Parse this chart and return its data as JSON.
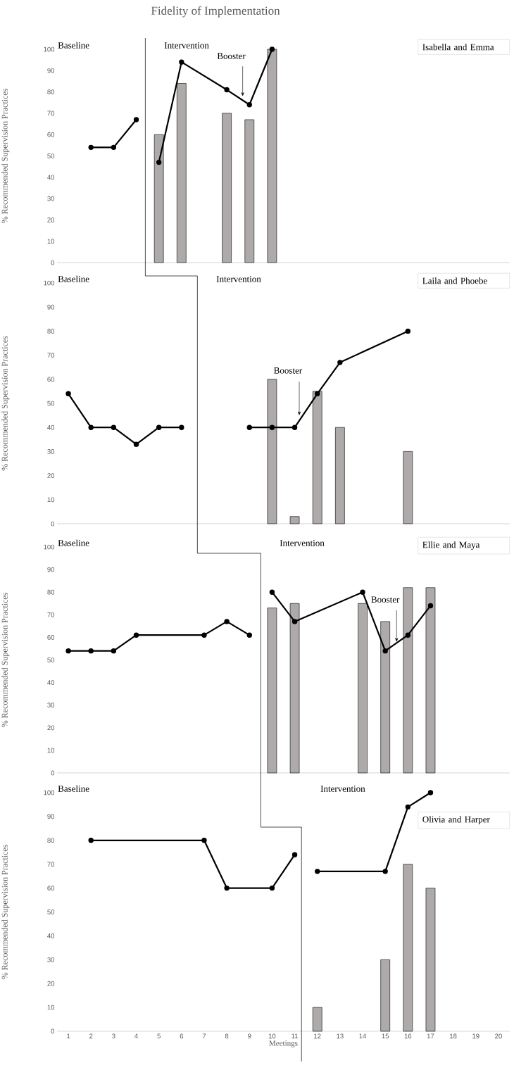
{
  "chart_data": [
    {
      "type": "line",
      "title": "Fidelity of Implementation",
      "subtitle": "Isabella and Emma",
      "ylabel": "% Recommended Supervision Practices",
      "xlim": [
        0.5,
        20.5
      ],
      "ylim": [
        0,
        100
      ],
      "yticks": [
        0,
        10,
        20,
        30,
        40,
        50,
        60,
        70,
        80,
        90,
        100
      ],
      "tick_labels": "y",
      "marker": "circle",
      "series": [
        {
          "type": "bar",
          "color": "#aeaaaa",
          "x": [
            5,
            6,
            8,
            9,
            10
          ],
          "values": [
            60,
            84,
            70,
            67,
            100
          ]
        },
        {
          "color": "#000000",
          "x": [
            2,
            3,
            4
          ],
          "values": [
            54,
            54,
            67
          ]
        },
        {
          "color": "#000000",
          "x": [
            5,
            6,
            8,
            9,
            10
          ],
          "values": [
            47,
            94,
            81,
            74,
            100
          ]
        }
      ],
      "ref_lines": [
        {
          "axis": "x",
          "value": 4.4,
          "color": "#000000"
        }
      ],
      "annotations": [
        "Baseline",
        "Intervention",
        {
          "text": "Booster",
          "x": 8.7,
          "y": 78
        }
      ]
    },
    {
      "type": "line",
      "subtitle": "Laila and Phoebe",
      "ylabel": "% Recommended Supervision Practices",
      "xlim": [
        0.5,
        20.5
      ],
      "ylim": [
        0,
        100
      ],
      "yticks": [
        0,
        10,
        20,
        30,
        40,
        50,
        60,
        70,
        80,
        90,
        100
      ],
      "tick_labels": "y",
      "marker": "circle",
      "series": [
        {
          "type": "bar",
          "color": "#aeaaaa",
          "x": [
            10,
            11,
            12,
            13,
            16
          ],
          "values": [
            60,
            3,
            55,
            40,
            30
          ]
        },
        {
          "color": "#000000",
          "x": [
            1,
            2,
            3,
            4,
            5,
            6
          ],
          "values": [
            54,
            40,
            40,
            33,
            40,
            40
          ]
        },
        {
          "color": "#000000",
          "x": [
            9,
            10,
            11,
            12,
            13,
            16
          ],
          "values": [
            40,
            40,
            40,
            54,
            67,
            80
          ]
        }
      ],
      "ref_lines": [
        {
          "axis": "x",
          "value": 6.7,
          "color": "#000000"
        }
      ],
      "annotations": [
        "Baseline",
        "Intervention",
        {
          "text": "Booster",
          "x": 11.2,
          "y": 45
        }
      ]
    },
    {
      "type": "line",
      "subtitle": "Ellie and Maya",
      "ylabel": "% Recommended Supervision Practices",
      "xlim": [
        0.5,
        20.5
      ],
      "ylim": [
        0,
        100
      ],
      "yticks": [
        0,
        10,
        20,
        30,
        40,
        50,
        60,
        70,
        80,
        90,
        100
      ],
      "tick_labels": "y",
      "marker": "circle",
      "series": [
        {
          "type": "bar",
          "color": "#aeaaaa",
          "x": [
            10,
            11,
            14,
            15,
            16,
            17
          ],
          "values": [
            73,
            75,
            75,
            67,
            82,
            82
          ]
        },
        {
          "color": "#000000",
          "x": [
            1,
            2,
            3,
            4,
            7,
            8,
            9
          ],
          "values": [
            54,
            54,
            54,
            61,
            61,
            67,
            61
          ]
        },
        {
          "color": "#000000",
          "x": [
            10,
            11,
            14,
            15,
            16,
            17
          ],
          "values": [
            80,
            67,
            80,
            54,
            61,
            74
          ]
        }
      ],
      "ref_lines": [
        {
          "axis": "x",
          "value": 9.5,
          "color": "#000000"
        }
      ],
      "annotations": [
        "Baseline",
        "Intervention",
        {
          "text": "Booster",
          "x": 15.5,
          "y": 58
        }
      ]
    },
    {
      "type": "line",
      "subtitle": "Olivia and Harper",
      "xlabel": "Meetings",
      "ylabel": "% Recommended Supervision Practices",
      "xlim": [
        0.5,
        20.5
      ],
      "ylim": [
        0,
        100
      ],
      "xticks": [
        1,
        2,
        3,
        4,
        5,
        6,
        7,
        8,
        9,
        10,
        11,
        12,
        13,
        14,
        15,
        16,
        17,
        18,
        19,
        20
      ],
      "yticks": [
        0,
        10,
        20,
        30,
        40,
        50,
        60,
        70,
        80,
        90,
        100
      ],
      "marker": "circle",
      "series": [
        {
          "type": "bar",
          "color": "#aeaaaa",
          "x": [
            12,
            15,
            16,
            17
          ],
          "values": [
            10,
            30,
            70,
            60
          ]
        },
        {
          "color": "#000000",
          "x": [
            2,
            7,
            8,
            10,
            11
          ],
          "values": [
            80,
            80,
            60,
            60,
            74
          ]
        },
        {
          "color": "#000000",
          "x": [
            12,
            15,
            16,
            17
          ],
          "values": [
            67,
            67,
            94,
            100
          ]
        }
      ],
      "ref_lines": [
        {
          "axis": "x",
          "value": 11.3,
          "color": "#000000"
        }
      ],
      "annotations": [
        "Baseline",
        "Intervention"
      ]
    }
  ]
}
